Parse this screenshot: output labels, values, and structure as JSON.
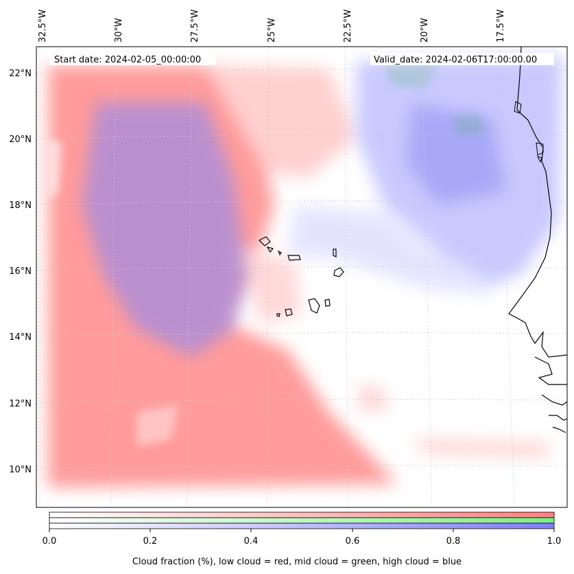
{
  "header": {
    "start_label": "Start date: 2024-02-05_00:00:00",
    "valid_label": "Valid_date: 2024-02-06T17:00:00.00"
  },
  "map": {
    "lon_ticks": [
      "32.5°W",
      "30°W",
      "27.5°W",
      "25°W",
      "22.5°W",
      "20°W",
      "17.5°W"
    ],
    "lat_ticks": [
      "22°N",
      "20°N",
      "18°N",
      "16°N",
      "14°N",
      "12°N",
      "10°N"
    ],
    "region": "Cape Verde islands and West African coast"
  },
  "legend": {
    "tick_labels": [
      "0.0",
      "0.2",
      "0.4",
      "0.6",
      "0.8",
      "1.0"
    ],
    "caption": "Cloud fraction (%), low cloud = red, mid cloud = green, high cloud = blue",
    "low_color": "#ff7f7f",
    "mid_color": "#80ee80",
    "high_color": "#7f7fff"
  }
}
